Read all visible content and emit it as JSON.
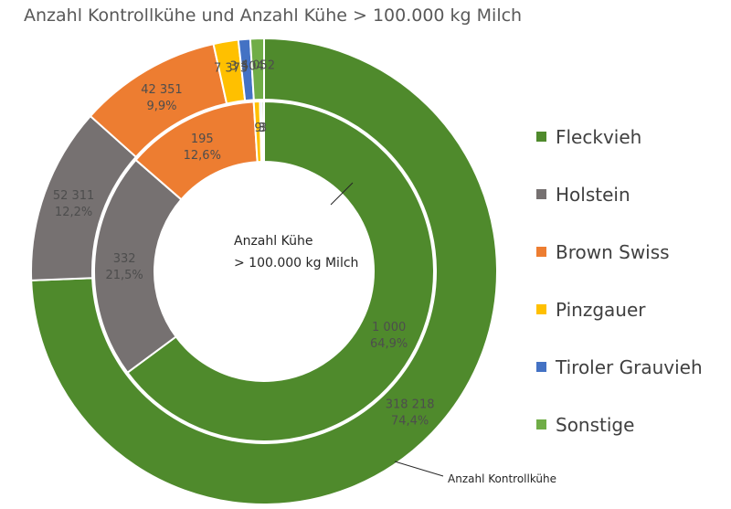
{
  "title": "Anzahl Kontrollkühe und Anzahl Kühe > 100.000 kg Milch",
  "colors": {
    "Fleckvieh": "#4f8a2c",
    "Holstein": "#767171",
    "Brown Swiss": "#ed7d31",
    "Pinzgauer": "#ffc000",
    "Tiroler Grauvieh": "#4472c4",
    "Sonstige": "#70ad47"
  },
  "chart_data": {
    "type": "pie",
    "variant": "donut-nested",
    "title": "Anzahl Kontrollkühe und Anzahl Kühe > 100.000 kg Milch",
    "legend_position": "right",
    "categories": [
      "Fleckvieh",
      "Holstein",
      "Brown Swiss",
      "Pinzgauer",
      "Tiroler Grauvieh",
      "Sonstige"
    ],
    "series": [
      {
        "name": "Anzahl Kontrollkühe",
        "ring": "outer",
        "values": [
          318218,
          52311,
          42351,
          7373,
          3504,
          4052
        ],
        "value_labels": [
          "318 218",
          "52 311",
          "42 351",
          "7 373",
          "3 504",
          "4 052"
        ],
        "percent_labels": [
          "74,4%",
          "12,2%",
          "9,9%",
          "",
          "",
          ""
        ]
      },
      {
        "name": "Anzahl Kühe\n> 100.000 kg Milch",
        "ring": "inner",
        "values": [
          1000,
          332,
          195,
          9,
          3,
          3
        ],
        "value_labels": [
          "1 000",
          "332",
          "195",
          "9",
          "3",
          "3"
        ],
        "percent_labels": [
          "64,9%",
          "21,5%",
          "12,6%",
          "",
          "",
          ""
        ]
      }
    ]
  }
}
